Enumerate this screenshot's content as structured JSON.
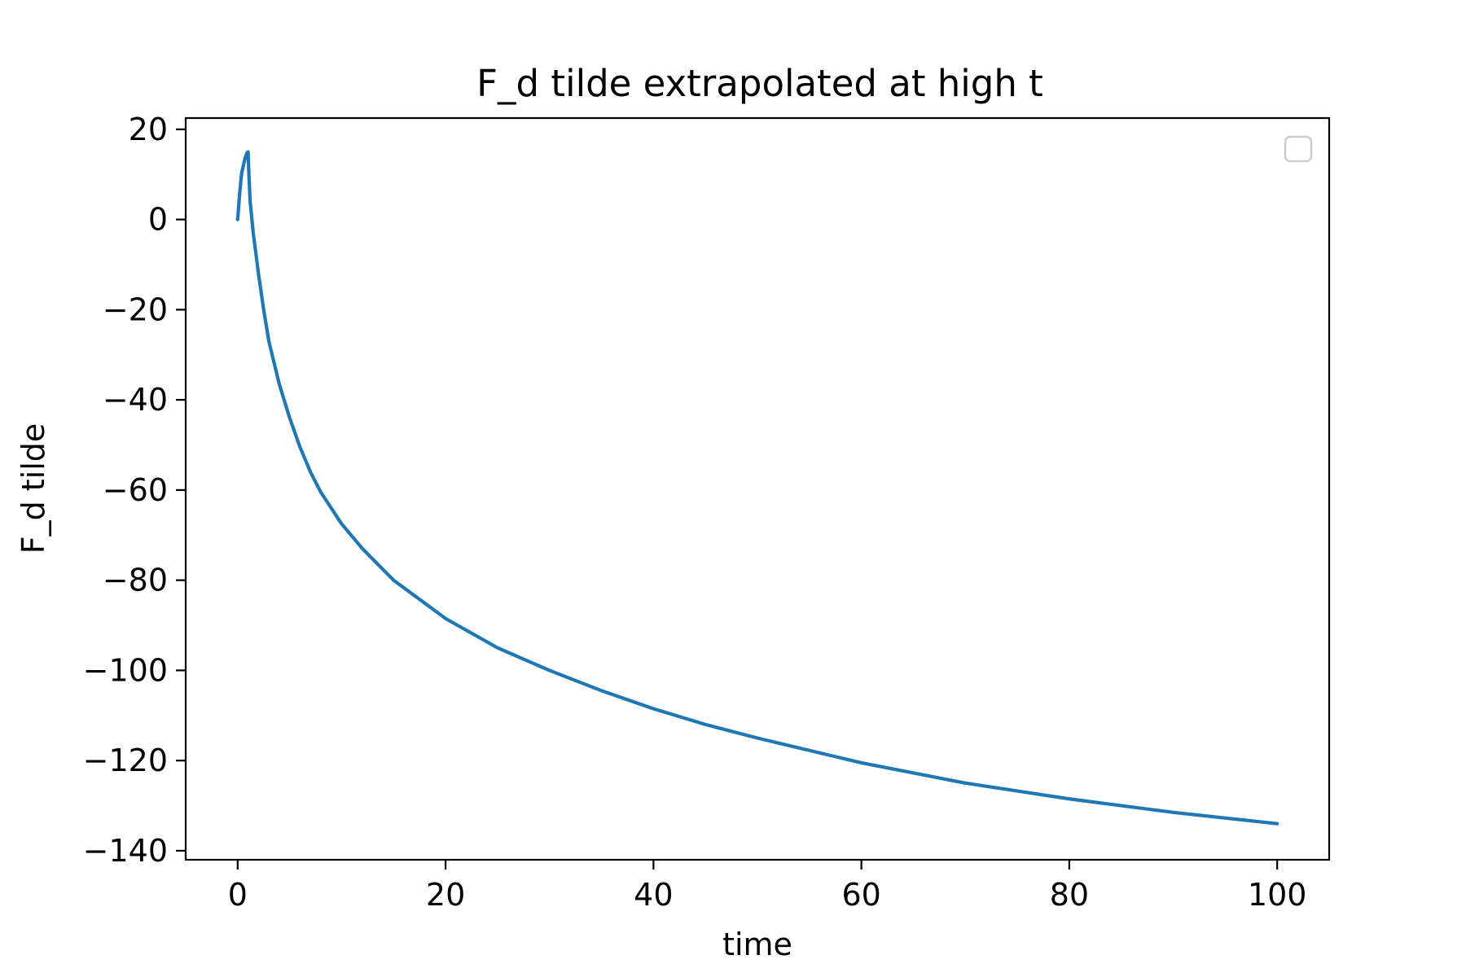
{
  "chart_data": {
    "type": "line",
    "title": "F_d tilde extrapolated at high t",
    "xlabel": "time",
    "ylabel": "F_d tilde",
    "xlim": [
      -5,
      105
    ],
    "ylim": [
      -142,
      22.5
    ],
    "xticks": [
      0,
      20,
      40,
      60,
      80,
      100
    ],
    "xtick_labels": [
      "0",
      "20",
      "40",
      "60",
      "80",
      "100"
    ],
    "yticks": [
      20,
      0,
      -20,
      -40,
      -60,
      -80,
      -100,
      -120,
      -140
    ],
    "ytick_labels": [
      "20",
      "0",
      "−20",
      "−40",
      "−60",
      "−80",
      "−100",
      "−120",
      "−140"
    ],
    "grid": false,
    "legend": {
      "location": "top-right",
      "entries": []
    },
    "series": [
      {
        "color": "#1f77b4",
        "x": [
          0,
          0.1,
          0.2,
          0.3,
          0.4,
          0.5,
          0.6,
          0.7,
          0.8,
          0.9,
          1.0,
          1.1,
          1.2,
          1.5,
          2,
          2.5,
          3,
          4,
          5,
          6,
          7,
          8,
          10,
          12,
          15,
          20,
          25,
          30,
          35,
          40,
          45,
          50,
          60,
          70,
          80,
          90,
          100
        ],
        "y": [
          0,
          3,
          6,
          8.5,
          10.5,
          11.5,
          12.5,
          13.5,
          14.2,
          14.8,
          15,
          9,
          4,
          -3,
          -12,
          -20,
          -27,
          -36.5,
          -44,
          -50.5,
          -56,
          -60.5,
          -67.5,
          -73,
          -80,
          -88.5,
          -95,
          -100,
          -104.5,
          -108.5,
          -112,
          -115,
          -120.5,
          -125,
          -128.5,
          -131.5,
          -134
        ]
      }
    ]
  }
}
